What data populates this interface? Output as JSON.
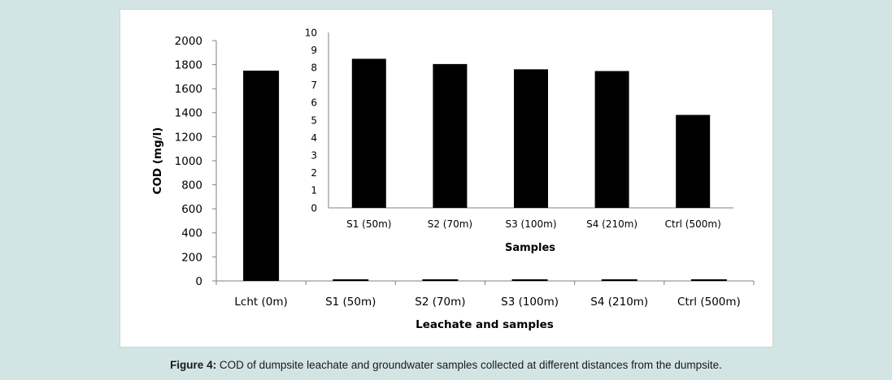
{
  "chart_data": [
    {
      "type": "bar",
      "categories": [
        "Lcht (0m)",
        "S1 (50m)",
        "S2 (70m)",
        "S3 (100m)",
        "S4 (210m)",
        "Ctrl (500m)"
      ],
      "values": [
        1750,
        8.5,
        8.2,
        7.9,
        7.8,
        5.3
      ],
      "xlabel": "Leachate and samples",
      "ylabel": "COD (mg/l)",
      "ylim": [
        0,
        2000
      ],
      "yticks": [
        0,
        200,
        400,
        600,
        800,
        1000,
        1200,
        1400,
        1600,
        1800,
        2000
      ],
      "grid": false,
      "bar_color": "#000000"
    },
    {
      "type": "bar",
      "categories": [
        "S1 (50m)",
        "S2 (70m)",
        "S3 (100m)",
        "S4 (210m)",
        "Ctrl (500m)"
      ],
      "values": [
        8.5,
        8.2,
        7.9,
        7.8,
        5.3
      ],
      "xlabel": "Samples",
      "ylabel": "",
      "ylim": [
        0,
        10
      ],
      "yticks": [
        0,
        1,
        2,
        3,
        4,
        5,
        6,
        7,
        8,
        9,
        10
      ],
      "grid": false,
      "bar_color": "#000000"
    }
  ],
  "caption": {
    "label": "Figure 4:",
    "text": " COD of dumpsite leachate and groundwater samples collected at different distances from the dumpsite."
  },
  "colors": {
    "background": "#d3e4e4",
    "panel": "#ffffff",
    "bars": "#000000"
  }
}
